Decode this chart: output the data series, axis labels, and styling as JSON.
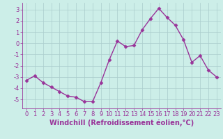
{
  "x": [
    0,
    1,
    2,
    3,
    4,
    5,
    6,
    7,
    8,
    9,
    10,
    11,
    12,
    13,
    14,
    15,
    16,
    17,
    18,
    19,
    20,
    21,
    22,
    23
  ],
  "y": [
    -3.3,
    -2.9,
    -3.5,
    -3.9,
    -4.3,
    -4.7,
    -4.8,
    -5.2,
    -5.2,
    -3.5,
    -1.5,
    0.2,
    -0.3,
    -0.2,
    1.2,
    2.2,
    3.1,
    2.3,
    1.6,
    0.3,
    -1.7,
    -1.1,
    -2.4,
    -3.0
  ],
  "line_color": "#993399",
  "marker": "D",
  "markersize": 2.5,
  "linewidth": 1.0,
  "bg_color": "#cceee8",
  "grid_color": "#aacccc",
  "xlabel": "Windchill (Refroidissement éolien,°C)",
  "xlabel_color": "#993399",
  "tick_color": "#993399",
  "ylim": [
    -5.8,
    3.6
  ],
  "yticks": [
    -5,
    -4,
    -3,
    -2,
    -1,
    0,
    1,
    2,
    3
  ],
  "xticks": [
    0,
    1,
    2,
    3,
    4,
    5,
    6,
    7,
    8,
    9,
    10,
    11,
    12,
    13,
    14,
    15,
    16,
    17,
    18,
    19,
    20,
    21,
    22,
    23
  ],
  "tick_fontsize": 6,
  "xlabel_fontsize": 7
}
